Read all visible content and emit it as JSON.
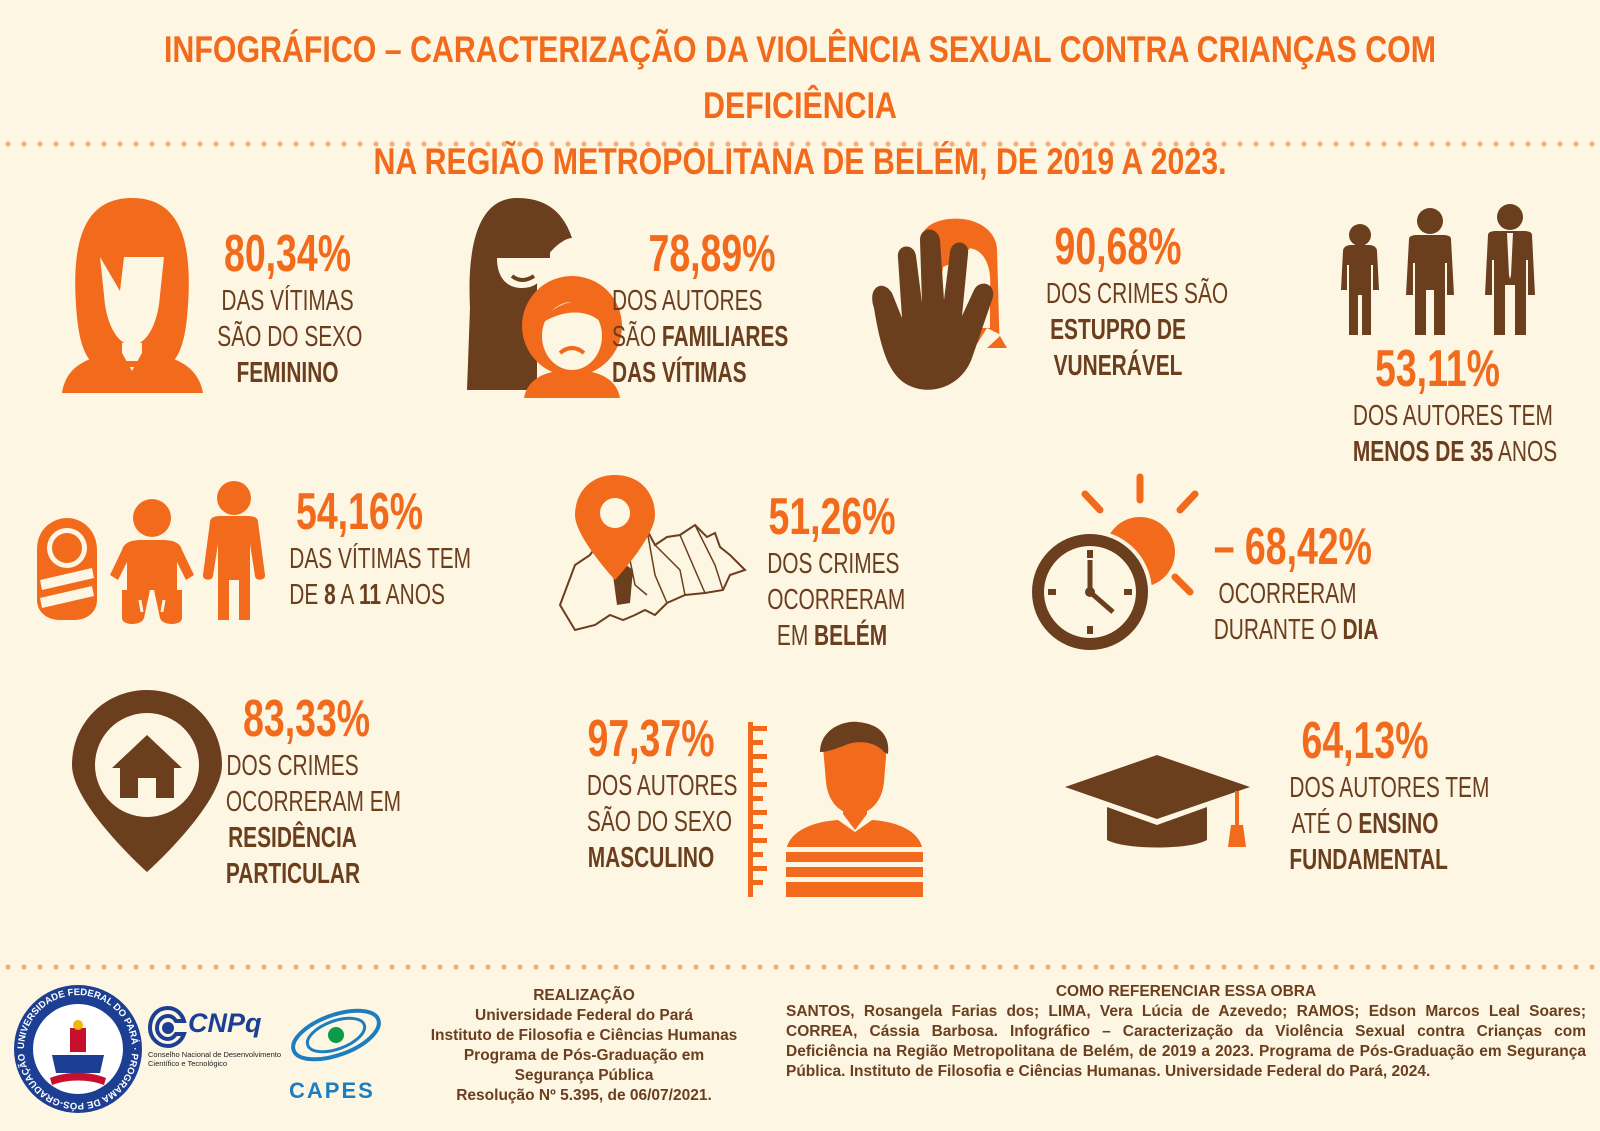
{
  "header": {
    "title_line1": "INFOGRÁFICO – CARACTERIZAÇÃO DA VIOLÊNCIA SEXUAL CONTRA CRIANÇAS COM DEFICIÊNCIA",
    "title_line2": "NA REGIÃO METROPOLITANA DE BELÉM, DE 2019 A 2023."
  },
  "colors": {
    "orange": "#f26a1b",
    "brown": "#6b3e1e",
    "background": "#fdf6e3"
  },
  "stats": [
    {
      "pct": "80,34%",
      "lines": [
        "DAS VÍTIMAS",
        "SÃO DO SEXO",
        "FEMININO"
      ],
      "icon": "female-icon"
    },
    {
      "pct": "78,89%",
      "l1": "DOS AUTORES",
      "l2a": "SÃO ",
      "l2b": "FAMILIARES",
      "l3": "DAS VÍTIMAS",
      "icon": "hooded-figure-child-icon"
    },
    {
      "pct": "90,68%",
      "lines": [
        "DOS CRIMES  SÃO",
        "ESTUPRO DE",
        "VUNERÁVEL"
      ],
      "icon": "stop-hand-icon"
    },
    {
      "pct": "53,11%",
      "l1": "DOS AUTORES TEM",
      "l2a": "MENOS DE 35",
      "l2b": " ANOS",
      "icon": "three-men-icon"
    },
    {
      "pct": "54,16%",
      "l1": "DAS VÍTIMAS TEM",
      "l2a": "DE ",
      "l2b": "8",
      "l2c": " A ",
      "l2d": "11",
      "l2e": " ANOS",
      "icon": "child-ages-icon"
    },
    {
      "pct": "51,26%",
      "l1": "DOS CRIMES",
      "l2": "OCORRERAM",
      "l3a": "EM ",
      "l3b": "BELÉM",
      "icon": "map-pin-icon"
    },
    {
      "pct": "68,42%",
      "dash": "–",
      "l1": "OCORRERAM",
      "l2a": "DURANTE O ",
      "l2b": "DIA",
      "icon": "sun-clock-icon"
    },
    {
      "pct": "83,33%",
      "l1": "DOS CRIMES",
      "l2": "OCORRERAM EM",
      "l3": "RESIDÊNCIA",
      "l4": "PARTICULAR",
      "icon": "house-pin-icon"
    },
    {
      "pct": "97,37%",
      "l1": "DOS AUTORES",
      "l2": "SÃO  DO SEXO",
      "l3": "MASCULINO",
      "icon": "male-icon"
    },
    {
      "pct": "64,13%",
      "l1": "DOS AUTORES TEM",
      "l2a": "ATÉ O  ",
      "l2b": "ENSINO",
      "l3": "FUNDAMENTAL",
      "icon": "graduation-cap-icon"
    }
  ],
  "footer": {
    "realization": {
      "heading": "REALIZAÇÃO",
      "lines": [
        "Universidade Federal do Pará",
        "Instituto de Filosofia e Ciências Humanas",
        "Programa de Pós-Graduação em",
        "Segurança Pública",
        "Resolução Nº 5.395, de 06/07/2021."
      ]
    },
    "reference": {
      "heading": "COMO REFERENCIAR ESSA OBRA",
      "text": "SANTOS, Rosangela Farias dos; LIMA, Vera Lúcia de Azevedo; RAMOS; Edson Marcos Leal Soares; CORREA, Cássia Barbosa. Infográfico – Caracterização da Violência Sexual contra Crianças com Deficiência na Região Metropolitana de Belém, de 2019 a 2023. Programa de Pós-Graduação em Segurança Pública. Instituto de Filosofia e Ciências Humanas. Universidade Federal do Pará, 2024."
    },
    "logos": {
      "ufpa_ring": "UNIVERSIDADE FEDERAL DO PARÁ · PROGRAMA DE PÓS-GRADUAÇÃO EM SEGURANÇA PÚBLICA",
      "cnpq": "CNPq",
      "cnpq_sub1": "Conselho Nacional de Desenvolvimento",
      "cnpq_sub2": "Científico e Tecnológico",
      "capes": "CAPES"
    }
  }
}
